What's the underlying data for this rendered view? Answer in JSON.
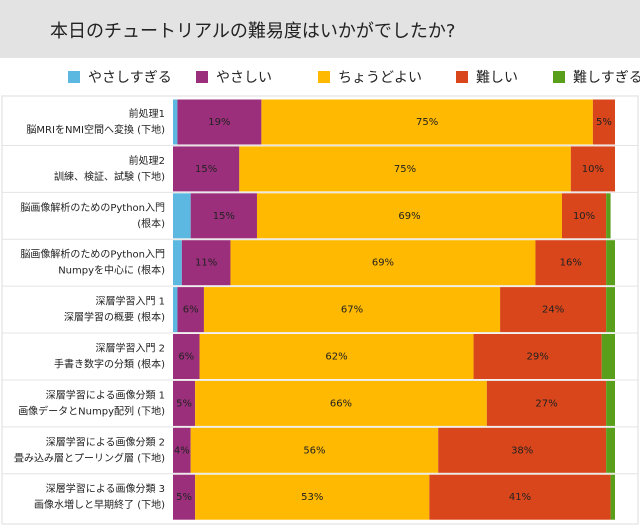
{
  "chart_data": {
    "type": "stacked-bar-horizontal",
    "title": "本日のチュートリアルの難易度はいかがでしたか?",
    "categories": [
      [
        "前処理1",
        "脳MRIをNMI空間へ変換 (下地)"
      ],
      [
        "前処理2",
        "訓練、検証、試験 (下地)"
      ],
      [
        "脳画像解析のためのPython入門",
        "(根本)"
      ],
      [
        "脳画像解析のためのPython入門",
        "Numpyを中心に (根本)"
      ],
      [
        "深層学習入門 1",
        "深層学習の概要 (根本)"
      ],
      [
        "深層学習入門 2",
        "手書き数字の分類 (根本)"
      ],
      [
        "深層学習による画像分類 1",
        "画像データとNumpy配列 (下地)"
      ],
      [
        "深層学習による画像分類 2",
        "畳み込み層とプーリング層 (下地)"
      ],
      [
        "深層学習による画像分類 3",
        "画像水増しと早期終了 (下地)"
      ]
    ],
    "xlim": [
      0,
      100
    ],
    "series": [
      {
        "name": "やさしすぎる",
        "color": "#5cb8e0",
        "values": [
          1,
          0,
          4,
          2,
          1,
          0,
          0,
          0,
          0
        ],
        "value_labels": [
          null,
          null,
          null,
          null,
          null,
          null,
          null,
          null,
          null
        ]
      },
      {
        "name": "やさしい",
        "color": "#9b2f7b",
        "values": [
          19,
          15,
          15,
          11,
          6,
          6,
          5,
          4,
          5
        ],
        "value_labels": [
          "19%",
          "15%",
          "15%",
          "11%",
          "6%",
          "6%",
          "5%",
          "4%",
          "5%"
        ]
      },
      {
        "name": "ちょうどよい",
        "color": "#ffb900",
        "values": [
          75,
          75,
          69,
          69,
          67,
          62,
          66,
          56,
          53
        ],
        "value_labels": [
          "75%",
          "75%",
          "69%",
          "69%",
          "67%",
          "62%",
          "66%",
          "56%",
          "53%"
        ]
      },
      {
        "name": "難しい",
        "color": "#d9461b",
        "values": [
          5,
          10,
          10,
          16,
          24,
          29,
          27,
          38,
          41
        ],
        "value_labels": [
          "5%",
          "10%",
          "10%",
          "16%",
          "24%",
          "29%",
          "27%",
          "38%",
          "41%"
        ]
      },
      {
        "name": "難しすぎる",
        "color": "#5a9f1b",
        "values": [
          0,
          0,
          1,
          2,
          2,
          3,
          2,
          2,
          1
        ],
        "value_labels": [
          null,
          null,
          null,
          null,
          null,
          null,
          null,
          null,
          null
        ]
      }
    ]
  }
}
